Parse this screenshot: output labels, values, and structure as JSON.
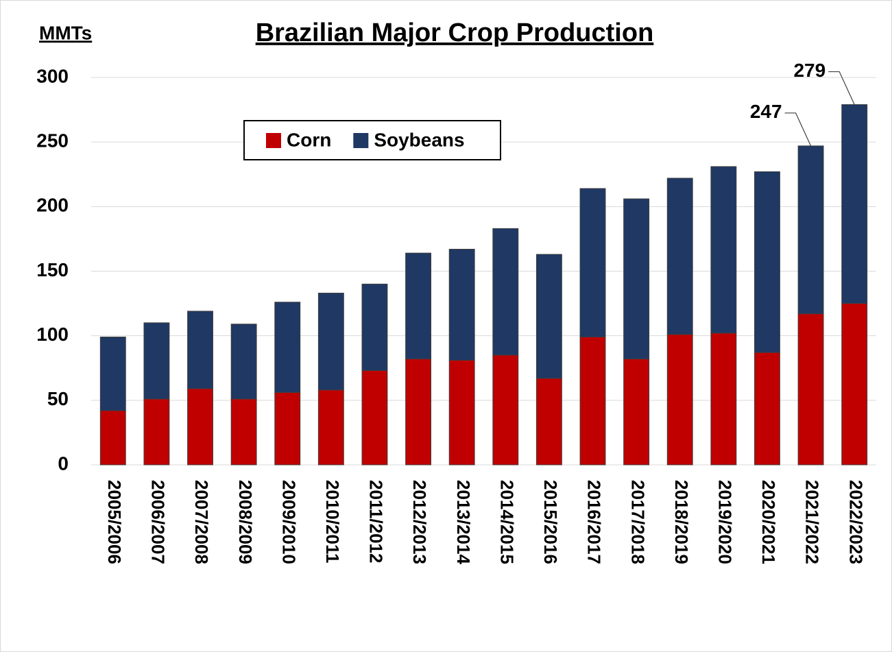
{
  "chart_data": {
    "type": "stacked_bar",
    "title": "Brazilian Major Crop Production",
    "y_label": "MMTs",
    "categories": [
      "2005/2006",
      "2006/2007",
      "2007/2008",
      "2008/2009",
      "2009/2010",
      "2010/2011",
      "2011/2012",
      "2012/2013",
      "2013/2014",
      "2014/2015",
      "2015/2016",
      "2016/2017",
      "2017/2018",
      "2018/2019",
      "2019/2020",
      "2020/2021",
      "2021/2022",
      "2022/2023"
    ],
    "series": [
      {
        "name": "Corn",
        "color": "#c00000",
        "values": [
          42,
          51,
          59,
          51,
          56,
          58,
          73,
          82,
          81,
          85,
          67,
          99,
          82,
          101,
          102,
          87,
          117,
          125
        ]
      },
      {
        "name": "Soybeans",
        "color": "#1f3864",
        "values": [
          57,
          59,
          60,
          58,
          70,
          75,
          67,
          82,
          86,
          98,
          96,
          115,
          124,
          121,
          129,
          140,
          130,
          154
        ]
      }
    ],
    "annotations": [
      {
        "text": "247",
        "x": "2021/2022",
        "value": 247
      },
      {
        "text": "279",
        "x": "2022/2023",
        "value": 279
      }
    ],
    "ylim": [
      0,
      300
    ],
    "yticks": [
      0,
      50,
      100,
      150,
      200,
      250,
      300
    ],
    "grid": true,
    "legend": "top-left"
  }
}
